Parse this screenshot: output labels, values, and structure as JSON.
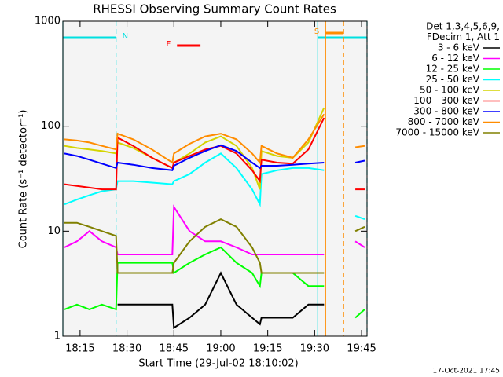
{
  "chart_data": {
    "type": "line",
    "title": "RHESSI Observing Summary Count Rates",
    "xlabel": "Start Time (29-Jul-02 18:10:02)",
    "ylabel": "Count Rate (s⁻¹ detector⁻¹)",
    "footer": "17-Oct-2021 17:45",
    "log_y": true,
    "ylim": [
      1,
      1000
    ],
    "yticks": [
      1,
      10,
      100,
      1000
    ],
    "xlim": [
      1089.5,
      1186.75
    ],
    "xticks": [
      {
        "value": 1095,
        "label": "18:15"
      },
      {
        "value": 1110,
        "label": "18:30"
      },
      {
        "value": 1125,
        "label": "18:45"
      },
      {
        "value": 1140,
        "label": "19:00"
      },
      {
        "value": 1155,
        "label": "19:15"
      },
      {
        "value": 1170,
        "label": "19:30"
      },
      {
        "value": 1185,
        "label": "19:45"
      }
    ],
    "legend_title": [
      "Det 1,3,4,5,6,9,",
      "FDecim 1, Att 1"
    ],
    "x": [
      1090,
      1094,
      1098,
      1102,
      1106.5,
      1107,
      1112,
      1118,
      1124.5,
      1125,
      1130,
      1135,
      1140,
      1145,
      1150,
      1152.5,
      1153,
      1158,
      1163,
      1168,
      1173,
      1174,
      1183,
      1186
    ],
    "series": [
      {
        "name": "3 - 6 keV",
        "color": "#000000",
        "values": [
          null,
          null,
          null,
          null,
          null,
          2,
          2,
          2,
          2,
          1.2,
          1.5,
          2,
          4,
          2,
          1.5,
          1.3,
          1.5,
          1.5,
          1.5,
          2,
          2,
          null,
          null,
          null
        ]
      },
      {
        "name": "6 - 12 keV",
        "color": "#ff00ff",
        "values": [
          7,
          8,
          10,
          8,
          7,
          6,
          6,
          6,
          6,
          17,
          10,
          8,
          8,
          7,
          6,
          6,
          6,
          6,
          6,
          6,
          6,
          null,
          8,
          7
        ]
      },
      {
        "name": "12 - 25 keV",
        "color": "#00ff00",
        "values": [
          1.8,
          2,
          1.8,
          2,
          1.8,
          5,
          5,
          5,
          5,
          4,
          5,
          6,
          7,
          5,
          4,
          3,
          4,
          4,
          4,
          3,
          3,
          null,
          1.5,
          1.8
        ]
      },
      {
        "name": "25 - 50 keV",
        "color": "#00ffff",
        "values": [
          18,
          20,
          22,
          24,
          25,
          30,
          30,
          29,
          28,
          30,
          35,
          45,
          55,
          40,
          25,
          18,
          35,
          38,
          40,
          40,
          38,
          null,
          14,
          13
        ]
      },
      {
        "name": "50 - 100 keV",
        "color": "#d4d400",
        "values": [
          65,
          62,
          60,
          58,
          55,
          70,
          62,
          50,
          40,
          45,
          55,
          70,
          80,
          65,
          40,
          25,
          58,
          52,
          50,
          70,
          150,
          null,
          null,
          null
        ]
      },
      {
        "name": "100 - 300 keV",
        "color": "#ff0000",
        "values": [
          28,
          27,
          26,
          25,
          25,
          78,
          65,
          50,
          40,
          45,
          52,
          60,
          65,
          55,
          38,
          30,
          48,
          45,
          44,
          60,
          120,
          null,
          25,
          25
        ]
      },
      {
        "name": "300 - 800 keV",
        "color": "#0000ff",
        "values": [
          55,
          52,
          48,
          44,
          40,
          45,
          43,
          40,
          38,
          42,
          50,
          58,
          66,
          58,
          45,
          40,
          42,
          42,
          43,
          44,
          45,
          null,
          45,
          47
        ]
      },
      {
        "name": "800 - 7000 keV",
        "color": "#ff8c00",
        "values": [
          75,
          73,
          70,
          65,
          60,
          85,
          75,
          60,
          45,
          55,
          68,
          80,
          85,
          75,
          55,
          45,
          65,
          55,
          50,
          75,
          130,
          null,
          63,
          65
        ]
      },
      {
        "name": "7000 - 15000 keV",
        "color": "#808000",
        "values": [
          12,
          12,
          11,
          10,
          9,
          4,
          4,
          4,
          4,
          5,
          8,
          11,
          13,
          11,
          7,
          5,
          4,
          4,
          4,
          4,
          4,
          null,
          10,
          11
        ]
      }
    ],
    "annotations": [
      {
        "label": "N",
        "start": 1089.5,
        "end": 1106.5,
        "color": "#00e0e0",
        "label_side": "right"
      },
      {
        "start": 1171,
        "end": 1186.75,
        "color": "#00e0e0"
      },
      {
        "label": "S",
        "start": 1173.5,
        "end": 1179.25,
        "color": "#ff8c00",
        "label_side": "left"
      },
      {
        "label": "F",
        "start": 1126,
        "end": 1133.5,
        "color": "#ff0000",
        "label_side": "left"
      }
    ]
  }
}
